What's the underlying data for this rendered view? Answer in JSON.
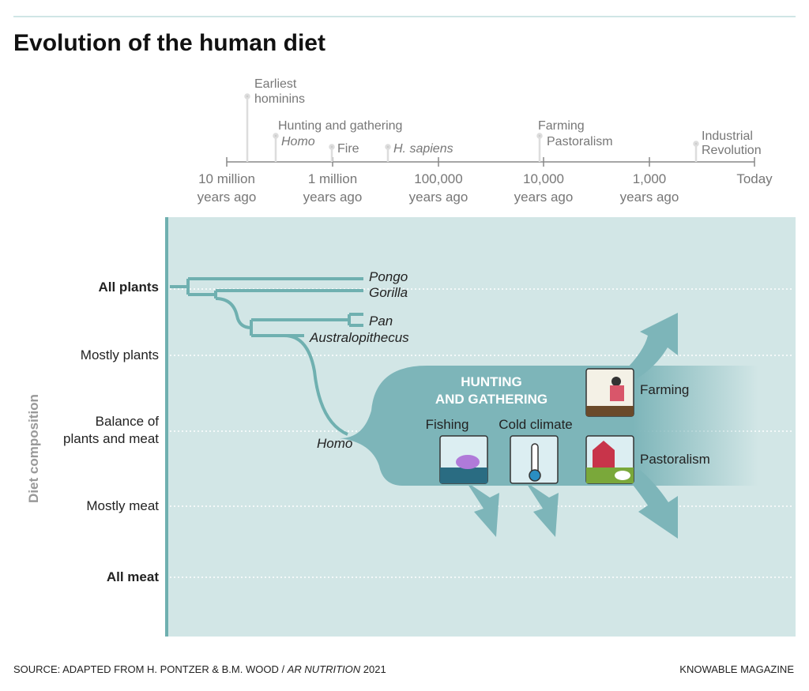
{
  "header": {
    "title": "Evolution of the human diet"
  },
  "timeline": {
    "ticks": [
      {
        "lines": [
          "10 million",
          "years ago"
        ]
      },
      {
        "lines": [
          "1 million",
          "years ago"
        ]
      },
      {
        "lines": [
          "100,000",
          "years ago"
        ]
      },
      {
        "lines": [
          "10,000",
          "years ago"
        ]
      },
      {
        "lines": [
          "1,000",
          "years ago"
        ]
      },
      {
        "lines": [
          "Today"
        ]
      }
    ],
    "events": [
      {
        "lines": [
          "Earliest",
          "hominins"
        ]
      },
      {
        "lines": [
          "Hunting and gathering"
        ]
      },
      {
        "lines": [
          "Homo"
        ]
      },
      {
        "lines": [
          "Fire"
        ]
      },
      {
        "lines": [
          "H. sapiens"
        ]
      },
      {
        "lines": [
          "Farming"
        ]
      },
      {
        "lines": [
          "Pastoralism"
        ]
      },
      {
        "lines": [
          "Industrial",
          "Revolution"
        ]
      }
    ]
  },
  "diet_axis": {
    "title": "Diet composition",
    "levels": [
      {
        "lines": [
          "All plants"
        ]
      },
      {
        "lines": [
          "Mostly plants"
        ]
      },
      {
        "lines": [
          "Balance of",
          "plants and meat"
        ]
      },
      {
        "lines": [
          "Mostly meat"
        ]
      },
      {
        "lines": [
          "All meat"
        ]
      }
    ]
  },
  "tree": {
    "labels": [
      "Pongo",
      "Gorilla",
      "Pan",
      "Australopithecus",
      "Homo"
    ]
  },
  "band": {
    "title": [
      "HUNTING",
      "AND GATHERING"
    ],
    "branches": [
      "Fishing",
      "Cold climate",
      "Farming",
      "Pastoralism"
    ]
  },
  "footer": {
    "source": [
      "SOURCE: ADAPTED FROM H. PONTZER & B.M. WOOD / ",
      "AR NUTRITION",
      " 2021"
    ],
    "credit": "KNOWABLE MAGAZINE"
  }
}
